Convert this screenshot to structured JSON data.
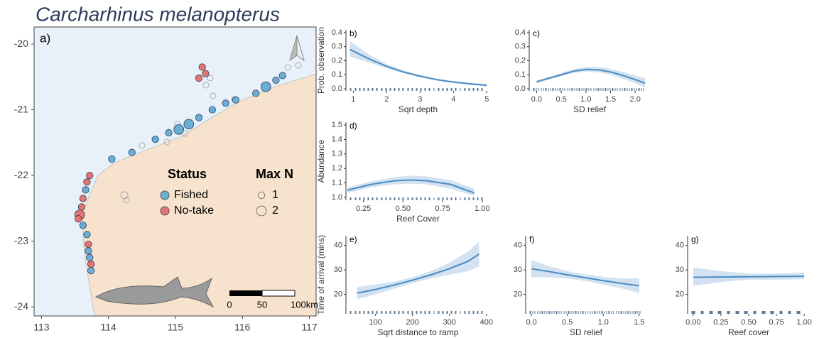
{
  "chart_data": [
    {
      "type": "map",
      "title": "Carcharhinus melanopterus",
      "panel_label": "a)",
      "xlim": [
        112.89,
        117.1
      ],
      "xticks": [
        113,
        114,
        115,
        116,
        117
      ],
      "ylim": [
        -24.14,
        -19.74
      ],
      "yticks": [
        -20,
        -21,
        -22,
        -23,
        -24
      ],
      "legend": {
        "status_title": "Status",
        "status": [
          {
            "name": "Fished",
            "color": "#6aaed6"
          },
          {
            "name": "No-take",
            "color": "#e57373"
          }
        ],
        "size_title": "Max N",
        "sizes": [
          1,
          2
        ]
      },
      "scale_bar": [
        "0",
        "50",
        "100km"
      ],
      "points": [
        {
          "lon": 114.05,
          "lat": -21.75,
          "status": "Fished",
          "max_n": 1
        },
        {
          "lon": 114.35,
          "lat": -21.65,
          "status": "Fished",
          "max_n": 1
        },
        {
          "lon": 114.7,
          "lat": -21.45,
          "status": "Fished",
          "max_n": 1
        },
        {
          "lon": 114.9,
          "lat": -21.35,
          "status": "Fished",
          "max_n": 1
        },
        {
          "lon": 115.05,
          "lat": -21.3,
          "status": "Fished",
          "max_n": 2
        },
        {
          "lon": 115.2,
          "lat": -21.22,
          "status": "Fished",
          "max_n": 2
        },
        {
          "lon": 115.35,
          "lat": -21.12,
          "status": "Fished",
          "max_n": 1
        },
        {
          "lon": 115.55,
          "lat": -21.0,
          "status": "Fished",
          "max_n": 1
        },
        {
          "lon": 115.75,
          "lat": -20.9,
          "status": "Fished",
          "max_n": 1
        },
        {
          "lon": 115.9,
          "lat": -20.85,
          "status": "Fished",
          "max_n": 1
        },
        {
          "lon": 116.2,
          "lat": -20.75,
          "status": "Fished",
          "max_n": 1
        },
        {
          "lon": 116.35,
          "lat": -20.65,
          "status": "Fished",
          "max_n": 2
        },
        {
          "lon": 116.5,
          "lat": -20.55,
          "status": "Fished",
          "max_n": 1
        },
        {
          "lon": 116.6,
          "lat": -20.48,
          "status": "Fished",
          "max_n": 1
        },
        {
          "lon": 115.4,
          "lat": -20.35,
          "status": "No-take",
          "max_n": 1
        },
        {
          "lon": 115.45,
          "lat": -20.45,
          "status": "No-take",
          "max_n": 1
        },
        {
          "lon": 115.35,
          "lat": -20.52,
          "status": "No-take",
          "max_n": 1
        },
        {
          "lon": 113.72,
          "lat": -22.0,
          "status": "No-take",
          "max_n": 1
        },
        {
          "lon": 113.68,
          "lat": -22.1,
          "status": "No-take",
          "max_n": 1
        },
        {
          "lon": 113.66,
          "lat": -22.22,
          "status": "Fished",
          "max_n": 1
        },
        {
          "lon": 113.62,
          "lat": -22.35,
          "status": "No-take",
          "max_n": 1
        },
        {
          "lon": 113.6,
          "lat": -22.48,
          "status": "No-take",
          "max_n": 1
        },
        {
          "lon": 113.57,
          "lat": -22.6,
          "status": "No-take",
          "max_n": 2
        },
        {
          "lon": 113.55,
          "lat": -22.66,
          "status": "No-take",
          "max_n": 1
        },
        {
          "lon": 113.62,
          "lat": -22.76,
          "status": "Fished",
          "max_n": 1
        },
        {
          "lon": 113.68,
          "lat": -22.9,
          "status": "Fished",
          "max_n": 1
        },
        {
          "lon": 113.7,
          "lat": -23.05,
          "status": "No-take",
          "max_n": 1
        },
        {
          "lon": 113.7,
          "lat": -23.15,
          "status": "Fished",
          "max_n": 1
        },
        {
          "lon": 113.72,
          "lat": -23.25,
          "status": "Fished",
          "max_n": 1
        },
        {
          "lon": 113.74,
          "lat": -23.35,
          "status": "No-take",
          "max_n": 1
        },
        {
          "lon": 113.74,
          "lat": -23.45,
          "status": "Fished",
          "max_n": 1
        }
      ]
    },
    {
      "type": "line",
      "panel_label": "b)",
      "ylabel": "Prob. observation",
      "xlabel": "Sqrt depth",
      "color": "#4a8cc4",
      "xlim": [
        0.78,
        5.1
      ],
      "xticks": [
        1,
        2,
        3,
        4,
        5
      ],
      "ylim": [
        -0.015,
        0.42
      ],
      "yticks": [
        {
          "value": 0,
          "label": "0.0"
        },
        0.1,
        0.2,
        0.3,
        0.4
      ],
      "x": [
        0.9,
        1.5,
        2,
        2.5,
        3,
        3.5,
        4,
        4.5,
        5
      ],
      "y": [
        0.28,
        0.21,
        0.16,
        0.12,
        0.09,
        0.065,
        0.048,
        0.035,
        0.025
      ],
      "ci_upper": [
        0.34,
        0.24,
        0.175,
        0.13,
        0.098,
        0.072,
        0.055,
        0.042,
        0.035
      ],
      "ci_lower": [
        0.23,
        0.185,
        0.145,
        0.11,
        0.083,
        0.058,
        0.041,
        0.028,
        0.017
      ]
    },
    {
      "type": "line",
      "panel_label": "c)",
      "xlabel": "SD relief",
      "color": "#4a8cc4",
      "xlim": [
        -0.15,
        2.3
      ],
      "xticks": [
        {
          "value": 0,
          "label": "0.0"
        },
        0.5,
        {
          "value": 1,
          "label": "1.0"
        },
        1.5,
        {
          "value": 2,
          "label": "2.0"
        }
      ],
      "ylim": [
        -0.015,
        0.42
      ],
      "yticks": [
        {
          "value": 0,
          "label": "0.0"
        },
        0.1,
        0.2,
        0.3,
        0.4
      ],
      "x": [
        0,
        0.25,
        0.5,
        0.75,
        1,
        1.25,
        1.5,
        1.75,
        2,
        2.2
      ],
      "y": [
        0.05,
        0.075,
        0.1,
        0.125,
        0.138,
        0.135,
        0.12,
        0.095,
        0.065,
        0.04
      ],
      "ci_upper": [
        0.06,
        0.085,
        0.112,
        0.14,
        0.155,
        0.155,
        0.142,
        0.12,
        0.095,
        0.075
      ],
      "ci_lower": [
        0.04,
        0.065,
        0.09,
        0.112,
        0.123,
        0.118,
        0.1,
        0.072,
        0.04,
        0.012
      ]
    },
    {
      "type": "line",
      "panel_label": "d)",
      "ylabel": "Abundance",
      "xlabel": "Reef Cover",
      "color": "#4a8cc4",
      "xlim": [
        0.14,
        1.05
      ],
      "xticks": [
        0.25,
        {
          "value": 0.5,
          "label": "0.50"
        },
        0.75,
        {
          "value": 1,
          "label": "1.00"
        }
      ],
      "ylim": [
        0.98,
        1.52
      ],
      "yticks": [
        {
          "value": 1,
          "label": "1.0"
        },
        1.1,
        1.2,
        1.3,
        1.4,
        1.5
      ],
      "x": [
        0.15,
        0.3,
        0.45,
        0.55,
        0.65,
        0.8,
        0.95
      ],
      "y": [
        1.05,
        1.09,
        1.115,
        1.12,
        1.115,
        1.09,
        1.03
      ],
      "ci_upper": [
        1.07,
        1.11,
        1.14,
        1.15,
        1.145,
        1.12,
        1.06
      ],
      "ci_lower": [
        1.03,
        1.07,
        1.09,
        1.095,
        1.09,
        1.06,
        1.01
      ]
    },
    {
      "type": "line",
      "panel_label": "e)",
      "ylabel": "Time of arrival (mins)",
      "xlabel": "Sqrt distance to ramp",
      "color": "#4a8cc4",
      "xlim": [
        20,
        410
      ],
      "xticks": [
        100,
        200,
        300,
        400
      ],
      "ylim": [
        12,
        44
      ],
      "yticks": [
        20,
        30,
        40
      ],
      "x": [
        50,
        100,
        150,
        200,
        250,
        300,
        350,
        380
      ],
      "y": [
        20.5,
        22,
        23.8,
        25.8,
        28,
        30.5,
        33.5,
        36.5
      ],
      "ci_upper": [
        23,
        24,
        25.2,
        27,
        29.5,
        33,
        37.5,
        41.5
      ],
      "ci_lower": [
        18,
        20,
        22.3,
        24.6,
        26.5,
        28,
        29.5,
        31.5
      ]
    },
    {
      "type": "line",
      "panel_label": "f)",
      "xlabel": "SD relief",
      "color": "#4a8cc4",
      "xlim": [
        -0.08,
        1.6
      ],
      "xticks": [
        {
          "value": 0,
          "label": "0.0"
        },
        0.5,
        {
          "value": 1,
          "label": "1.0"
        },
        1.5
      ],
      "ylim": [
        12,
        44
      ],
      "yticks": [
        20,
        30,
        40
      ],
      "x": [
        0,
        0.25,
        0.5,
        0.75,
        1,
        1.25,
        1.5
      ],
      "y": [
        30.5,
        29.3,
        28,
        26.8,
        25.6,
        24.5,
        23.5
      ],
      "ci_upper": [
        34,
        31.5,
        29.5,
        28.1,
        27.2,
        26.5,
        26.5
      ],
      "ci_lower": [
        27,
        27,
        26.5,
        25.5,
        24,
        22.5,
        20.5
      ]
    },
    {
      "type": "line",
      "panel_label": "g)",
      "xlabel": "Reef cover",
      "color": "#4a8cc4",
      "xlim": [
        -0.05,
        1.05
      ],
      "xticks": [
        {
          "value": 0,
          "label": "0.00"
        },
        0.25,
        {
          "value": 0.5,
          "label": "0.50"
        },
        0.75,
        {
          "value": 1,
          "label": "1.00"
        }
      ],
      "ylim": [
        12,
        44
      ],
      "yticks": [
        20,
        30,
        40
      ],
      "x": [
        0,
        0.25,
        0.5,
        0.75,
        1
      ],
      "y": [
        27,
        27.1,
        27.2,
        27.3,
        27.4
      ],
      "ci_upper": [
        31,
        29.5,
        28.5,
        28.5,
        29
      ],
      "ci_lower": [
        23.5,
        25,
        26,
        26,
        26.2
      ]
    }
  ]
}
